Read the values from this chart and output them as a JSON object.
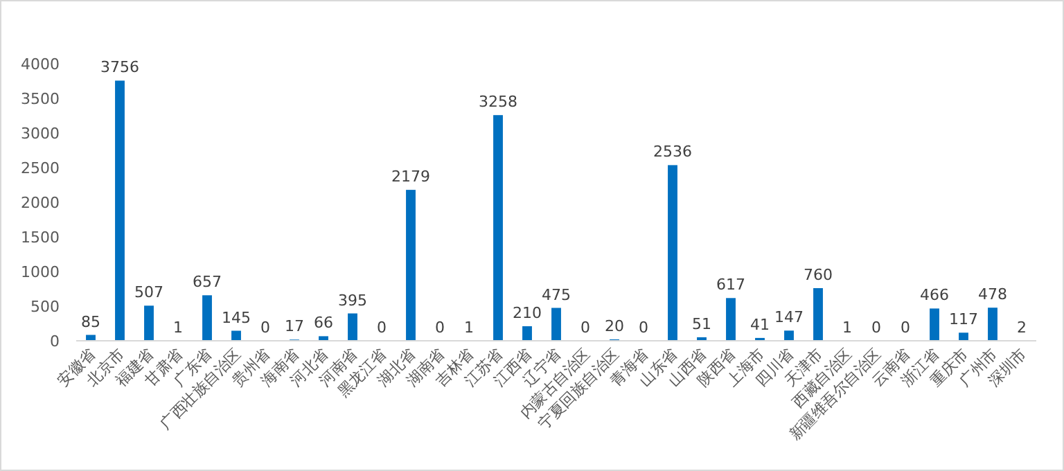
{
  "chart_data": {
    "type": "bar",
    "categories": [
      "安徽省",
      "北京市",
      "福建省",
      "甘肃省",
      "广东省",
      "广西壮族自治区",
      "贵州省",
      "海南省",
      "河北省",
      "河南省",
      "黑龙江省",
      "湖北省",
      "湖南省",
      "吉林省",
      "江苏省",
      "江西省",
      "辽宁省",
      "内蒙古自治区",
      "宁夏回族自治区",
      "青海省",
      "山东省",
      "山西省",
      "陕西省",
      "上海市",
      "四川省",
      "天津市",
      "西藏自治区",
      "新疆维吾尔自治区",
      "云南省",
      "浙江省",
      "重庆市",
      "广州市",
      "深圳市"
    ],
    "values": [
      85,
      3756,
      507,
      1,
      657,
      145,
      0,
      17,
      66,
      395,
      0,
      2179,
      0,
      1,
      3258,
      210,
      475,
      0,
      20,
      0,
      2536,
      51,
      617,
      41,
      147,
      760,
      1,
      0,
      0,
      466,
      117,
      478,
      2
    ],
    "color": "#0070c0",
    "ylim": [
      0,
      4000
    ],
    "yticks": [
      0,
      500,
      1000,
      1500,
      2000,
      2500,
      3000,
      3500,
      4000
    ],
    "data_labels": true
  }
}
